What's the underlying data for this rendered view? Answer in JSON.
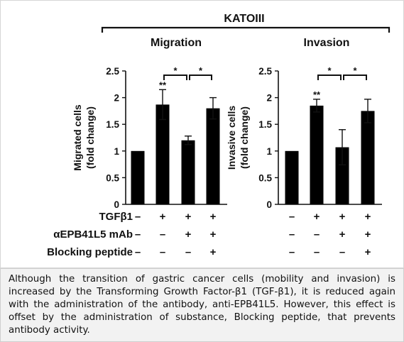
{
  "figure": {
    "cell_line": "KATOIII",
    "treatment_rows": [
      {
        "label": "TGFβ1",
        "signs": [
          "–",
          "+",
          "+",
          "+"
        ]
      },
      {
        "label": "αEPB41L5 mAb",
        "signs": [
          "–",
          "–",
          "+",
          "+"
        ]
      },
      {
        "label": "Blocking peptide",
        "signs": [
          "–",
          "–",
          "–",
          "+"
        ]
      }
    ]
  },
  "chart_data": [
    {
      "type": "bar",
      "title": "Migration",
      "ylabel_line1": "Migrated cells",
      "ylabel_line2": "(fold change)",
      "ylim": [
        0,
        2.5
      ],
      "yticks": [
        0,
        0.5,
        1,
        1.5,
        2,
        2.5
      ],
      "ytick_labels": [
        "0",
        "0.5",
        "1",
        "1.5",
        "2",
        "2.5"
      ],
      "values": [
        1.0,
        1.87,
        1.2,
        1.8
      ],
      "errors": [
        0,
        0.28,
        0.08,
        0.2
      ],
      "bar_marks": [
        "",
        "**",
        "",
        ""
      ],
      "comparisons": [
        {
          "from": 1,
          "to": 2,
          "label": "*"
        },
        {
          "from": 2,
          "to": 3,
          "label": "*"
        }
      ]
    },
    {
      "type": "bar",
      "title": "Invasion",
      "ylabel_line1": "Invasive cells",
      "ylabel_line2": "(fold change)",
      "ylim": [
        0,
        2.5
      ],
      "yticks": [
        0,
        0.5,
        1,
        1.5,
        2,
        2.5
      ],
      "ytick_labels": [
        "0",
        "0.5",
        "1",
        "1.5",
        "2",
        "2.5"
      ],
      "values": [
        1.0,
        1.85,
        1.07,
        1.75
      ],
      "errors": [
        0,
        0.12,
        0.33,
        0.22
      ],
      "bar_marks": [
        "",
        "**",
        "",
        ""
      ],
      "comparisons": [
        {
          "from": 1,
          "to": 2,
          "label": "*"
        },
        {
          "from": 2,
          "to": 3,
          "label": "*"
        }
      ]
    }
  ],
  "caption": "Although the transition of gastric cancer cells (mobility and invasion) is increased by the Transforming Growth Factor-β1 (TGF-β1), it is reduced again with the administration of the antibody, anti-EPB41L5. However, this effect is offset by the administration of substance, Blocking peptide, that prevents antibody activity."
}
